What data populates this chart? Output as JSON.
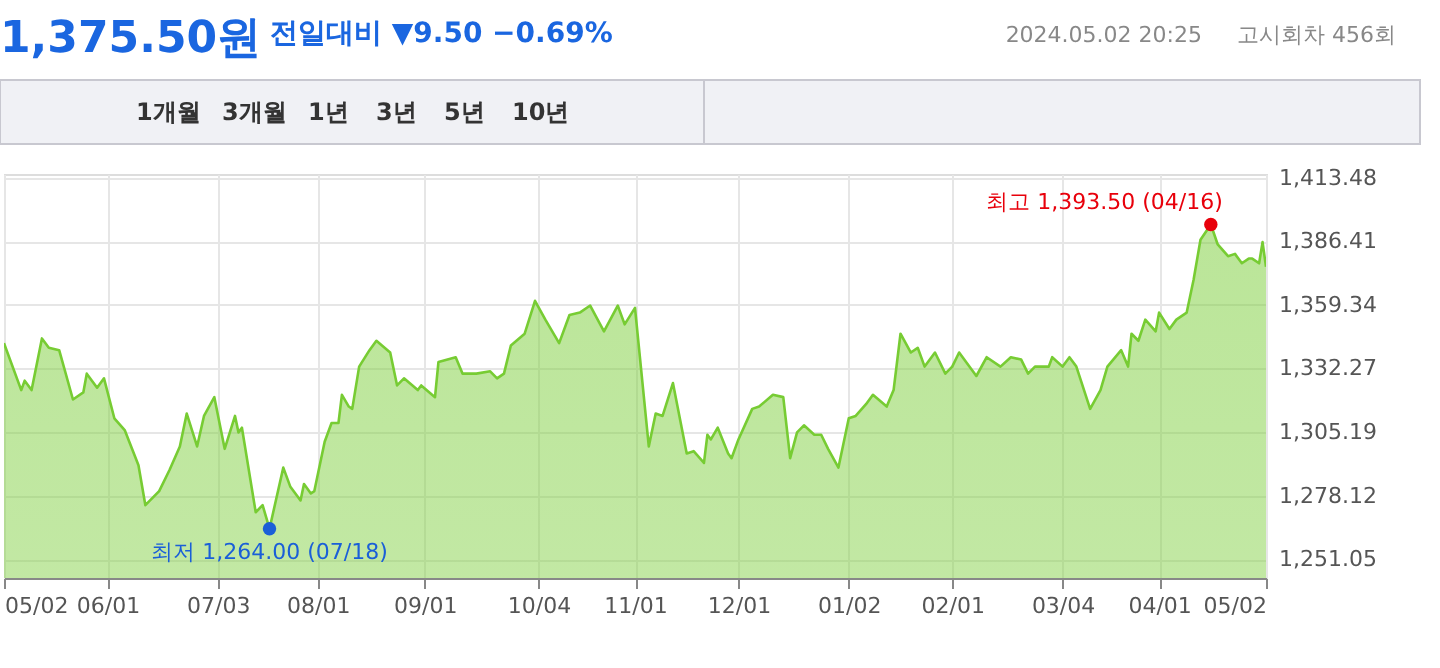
{
  "chart_data": {
    "type": "area",
    "title": "1,375.50원",
    "subtitle": "전일대비 ▼9.50 −0.69%",
    "annotations": [
      "2024.05.02 20:25",
      "고시회차 456회",
      "1개월",
      "3개월",
      "1년",
      "3년",
      "5년",
      "10년",
      {
        "text": "최고 1,393.50 (04/16)",
        "x": "2024-04-16",
        "y": 1393.5
      },
      {
        "text": "최저 1,264.00 (07/18)",
        "x": "2023-07-18",
        "y": 1264.0
      }
    ],
    "x": [
      "2023-05-02",
      "2023-05-07",
      "2023-05-08",
      "2023-05-10",
      "2023-05-13",
      "2023-05-15",
      "2023-05-18",
      "2023-05-22",
      "2023-05-25",
      "2023-05-26",
      "2023-05-29",
      "2023-05-31",
      "2023-06-03",
      "2023-06-06",
      "2023-06-10",
      "2023-06-12",
      "2023-06-16",
      "2023-06-19",
      "2023-06-22",
      "2023-06-24",
      "2023-06-27",
      "2023-06-29",
      "2023-07-02",
      "2023-07-05",
      "2023-07-08",
      "2023-07-09",
      "2023-07-10",
      "2023-07-14",
      "2023-07-16",
      "2023-07-18",
      "2023-07-22",
      "2023-07-24",
      "2023-07-27",
      "2023-07-28",
      "2023-07-30",
      "2023-07-31",
      "2023-08-03",
      "2023-08-05",
      "2023-08-07",
      "2023-08-08",
      "2023-08-10",
      "2023-08-11",
      "2023-08-13",
      "2023-08-16",
      "2023-08-18",
      "2023-08-22",
      "2023-08-24",
      "2023-08-26",
      "2023-08-30",
      "2023-08-31",
      "2023-09-04",
      "2023-09-05",
      "2023-09-10",
      "2023-09-12",
      "2023-09-16",
      "2023-09-20",
      "2023-09-22",
      "2023-09-24",
      "2023-09-26",
      "2023-09-30",
      "2023-10-03",
      "2023-10-06",
      "2023-10-10",
      "2023-10-13",
      "2023-10-16",
      "2023-10-19",
      "2023-10-23",
      "2023-10-27",
      "2023-10-29",
      "2023-11-01",
      "2023-11-05",
      "2023-11-07",
      "2023-11-09",
      "2023-11-12",
      "2023-11-16",
      "2023-11-18",
      "2023-11-21",
      "2023-11-22",
      "2023-11-23",
      "2023-11-25",
      "2023-11-28",
      "2023-11-29",
      "2023-12-01",
      "2023-12-05",
      "2023-12-07",
      "2023-12-11",
      "2023-12-14",
      "2023-12-16",
      "2023-12-18",
      "2023-12-20",
      "2023-12-23",
      "2023-12-25",
      "2023-12-27",
      "2023-12-30",
      "2024-01-02",
      "2024-01-04",
      "2024-01-07",
      "2024-01-09",
      "2024-01-13",
      "2024-01-15",
      "2024-01-17",
      "2024-01-20",
      "2024-01-22",
      "2024-01-24",
      "2024-01-27",
      "2024-01-30",
      "2024-02-01",
      "2024-02-03",
      "2024-02-08",
      "2024-02-11",
      "2024-02-15",
      "2024-02-18",
      "2024-02-21",
      "2024-02-23",
      "2024-02-25",
      "2024-02-29",
      "2024-03-01",
      "2024-03-04",
      "2024-03-06",
      "2024-03-08",
      "2024-03-12",
      "2024-03-15",
      "2024-03-17",
      "2024-03-21",
      "2024-03-23",
      "2024-03-24",
      "2024-03-26",
      "2024-03-28",
      "2024-03-31",
      "2024-04-01",
      "2024-04-04",
      "2024-04-06",
      "2024-04-09",
      "2024-04-11",
      "2024-04-13",
      "2024-04-16",
      "2024-04-18",
      "2024-04-21",
      "2024-04-23",
      "2024-04-25",
      "2024-04-27",
      "2024-04-28",
      "2024-04-30",
      "2024-05-01",
      "2024-05-02"
    ],
    "series": [
      {
        "color": "#77cc33",
        "values": [
          1343,
          1323,
          1327,
          1323,
          1345,
          1341,
          1340,
          1319,
          1322,
          1330,
          1324,
          1328,
          1311,
          1306,
          1291,
          1274,
          1280,
          1289,
          1299,
          1313,
          1299,
          1312,
          1320,
          1298,
          1312,
          1305,
          1307,
          1271,
          1274,
          1264,
          1290,
          1282,
          1276,
          1283,
          1279,
          1280,
          1301,
          1309,
          1309,
          1321,
          1316,
          1315,
          1333,
          1340,
          1344,
          1339,
          1325,
          1328,
          1323,
          1325,
          1320,
          1335,
          1337,
          1330,
          1330,
          1331,
          1328,
          1330,
          1342,
          1347,
          1361,
          1353,
          1343,
          1355,
          1356,
          1359,
          1348,
          1359,
          1351,
          1358,
          1299,
          1313,
          1312,
          1326,
          1296,
          1297,
          1292,
          1304,
          1302,
          1307,
          1296,
          1294,
          1302,
          1315,
          1316,
          1321,
          1320,
          1294,
          1305,
          1308,
          1304,
          1304,
          1298,
          1290,
          1311,
          1312,
          1317,
          1321,
          1316,
          1323,
          1347,
          1339,
          1341,
          1333,
          1339,
          1330,
          1333,
          1339,
          1329,
          1337,
          1333,
          1337,
          1336,
          1330,
          1333,
          1333,
          1337,
          1333,
          1337,
          1333,
          1315,
          1323,
          1333,
          1340,
          1333,
          1347,
          1344,
          1353,
          1348,
          1356,
          1349,
          1353,
          1356,
          1370,
          1387,
          1393.5,
          1385,
          1380,
          1381,
          1377,
          1379,
          1379,
          1377,
          1386,
          1375.5
        ]
      }
    ],
    "xlim": [
      "2023-05-02",
      "2024-05-02"
    ],
    "xticks": [
      {
        "value": "2023-05-02",
        "label": "05/02"
      },
      {
        "value": "2023-06-01",
        "label": "06/01"
      },
      {
        "value": "2023-07-03",
        "label": "07/03"
      },
      {
        "value": "2023-08-01",
        "label": "08/01"
      },
      {
        "value": "2023-09-01",
        "label": "09/01"
      },
      {
        "value": "2023-10-04",
        "label": "10/04"
      },
      {
        "value": "2023-11-01",
        "label": "11/01"
      },
      {
        "value": "2023-12-01",
        "label": "12/01"
      },
      {
        "value": "2024-01-02",
        "label": "01/02"
      },
      {
        "value": "2024-02-01",
        "label": "02/01"
      },
      {
        "value": "2024-03-04",
        "label": "03/04"
      },
      {
        "value": "2024-04-01",
        "label": "04/01"
      },
      {
        "value": "2024-05-02",
        "label": "05/02"
      }
    ],
    "ylim": [
      1243,
      1415
    ],
    "yticks": [
      {
        "value": 1251.05,
        "label": "1,251.05"
      },
      {
        "value": 1278.12,
        "label": "1,278.12"
      },
      {
        "value": 1305.19,
        "label": "1,305.19"
      },
      {
        "value": 1332.27,
        "label": "1,332.27"
      },
      {
        "value": 1359.34,
        "label": "1,359.34"
      },
      {
        "value": 1386.41,
        "label": "1,386.41"
      },
      {
        "value": 1413.48,
        "label": "1,413.48"
      }
    ],
    "grid": true
  }
}
